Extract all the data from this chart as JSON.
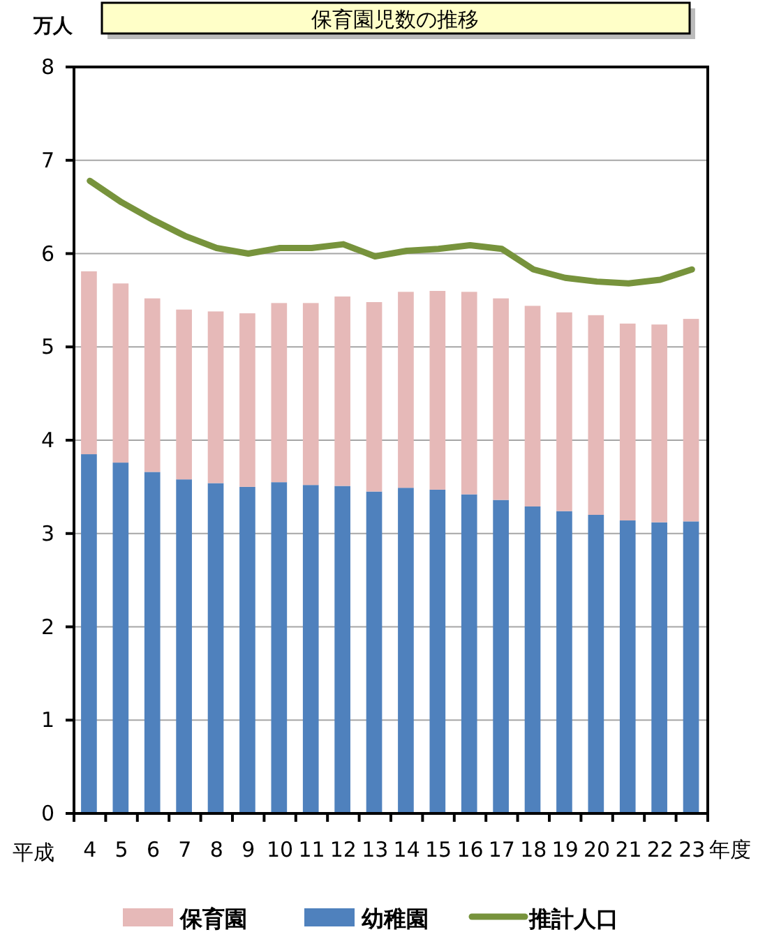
{
  "chart_data": {
    "type": "bar",
    "title": "保育園児数の推移",
    "ylabel": "万人",
    "xlabel": "年度",
    "annotations": [
      "平成"
    ],
    "categories": [
      "4",
      "5",
      "6",
      "7",
      "8",
      "9",
      "10",
      "11",
      "12",
      "13",
      "14",
      "15",
      "16",
      "17",
      "18",
      "19",
      "20",
      "21",
      "22",
      "23"
    ],
    "stacked": true,
    "ylim": [
      0,
      8
    ],
    "yticks": [
      0,
      1,
      2,
      3,
      4,
      5,
      6,
      7,
      8
    ],
    "grid": "y",
    "legend": "bottom",
    "series": [
      {
        "name": "幼稚園",
        "color": "#4f81bd",
        "values": [
          3.85,
          3.76,
          3.66,
          3.58,
          3.54,
          3.5,
          3.55,
          3.52,
          3.51,
          3.45,
          3.49,
          3.47,
          3.42,
          3.36,
          3.29,
          3.24,
          3.2,
          3.14,
          3.12,
          3.13
        ]
      },
      {
        "name": "保育園",
        "color": "#e6b9b8",
        "values": [
          1.96,
          1.92,
          1.86,
          1.82,
          1.84,
          1.86,
          1.92,
          1.95,
          2.03,
          2.03,
          2.1,
          2.13,
          2.17,
          2.16,
          2.15,
          2.13,
          2.14,
          2.11,
          2.12,
          2.17
        ]
      },
      {
        "name": "推計人口",
        "type": "line",
        "color": "#77933c",
        "values": [
          6.78,
          6.55,
          6.36,
          6.19,
          6.06,
          6.0,
          6.06,
          6.06,
          6.1,
          5.97,
          6.03,
          6.05,
          6.09,
          6.05,
          5.83,
          5.74,
          5.7,
          5.68,
          5.72,
          5.83
        ]
      }
    ]
  }
}
